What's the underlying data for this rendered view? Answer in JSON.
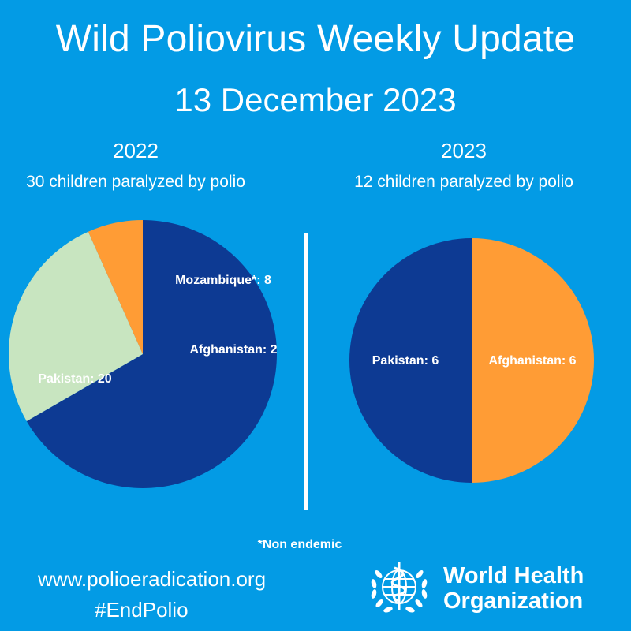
{
  "header": {
    "title": "Wild Poliovirus Weekly Update",
    "date": "13 December 2023"
  },
  "chart_data": [
    {
      "type": "pie",
      "title": "2022",
      "subtitle": "30 children paralyzed by polio",
      "categories": [
        "Pakistan",
        "Mozambique*",
        "Afghanistan"
      ],
      "values": [
        20,
        8,
        2
      ],
      "labels": [
        "Pakistan: 20",
        "Mozambique*: 8",
        "Afghanistan: 2"
      ],
      "colors": [
        "#0d3a93",
        "#c8e5c0",
        "#ff9c35"
      ]
    },
    {
      "type": "pie",
      "title": "2023",
      "subtitle": "12 children paralyzed by polio",
      "categories": [
        "Afghanistan",
        "Pakistan"
      ],
      "values": [
        6,
        6
      ],
      "labels": [
        "Afghanistan: 6",
        "Pakistan: 6"
      ],
      "colors": [
        "#ff9c35",
        "#0d3a93"
      ]
    }
  ],
  "footer": {
    "note": "*Non endemic",
    "url": "www.polioeradication.org",
    "hashtag": "#EndPolio",
    "org_line1": "World Health",
    "org_line2": "Organization",
    "logo_icon": "who-emblem-icon"
  },
  "colors": {
    "background": "#039be5",
    "text": "#ffffff"
  }
}
